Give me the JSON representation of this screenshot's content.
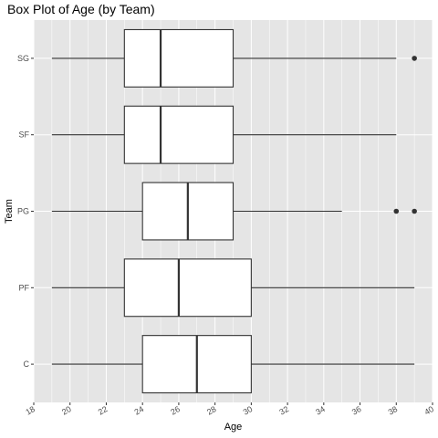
{
  "chart_data": {
    "type": "boxplot",
    "orientation": "horizontal",
    "title": "Box Plot of Age (by Team)",
    "xlabel": "Age",
    "ylabel": "Team",
    "xlim": [
      18,
      40
    ],
    "x_ticks": [
      18,
      20,
      22,
      24,
      26,
      28,
      30,
      32,
      34,
      36,
      38,
      40
    ],
    "categories": [
      "SG",
      "SF",
      "PG",
      "PF",
      "C"
    ],
    "boxes": [
      {
        "category": "SG",
        "whisker_low": 19,
        "q1": 23,
        "median": 25,
        "q3": 29,
        "whisker_high": 38,
        "outliers": [
          39
        ]
      },
      {
        "category": "SF",
        "whisker_low": 19,
        "q1": 23,
        "median": 25,
        "q3": 29,
        "whisker_high": 38,
        "outliers": []
      },
      {
        "category": "PG",
        "whisker_low": 19,
        "q1": 24,
        "median": 26.5,
        "q3": 29,
        "whisker_high": 35,
        "outliers": [
          38,
          39
        ]
      },
      {
        "category": "PF",
        "whisker_low": 19,
        "q1": 23,
        "median": 26,
        "q3": 30,
        "whisker_high": 39,
        "outliers": []
      },
      {
        "category": "C",
        "whisker_low": 19,
        "q1": 24,
        "median": 27,
        "q3": 30,
        "whisker_high": 39,
        "outliers": []
      }
    ],
    "grid": true,
    "colors": {
      "panel": "#e5e5e5",
      "grid": "#ffffff",
      "box_fill": "#ffffff",
      "line": "#333333"
    }
  }
}
